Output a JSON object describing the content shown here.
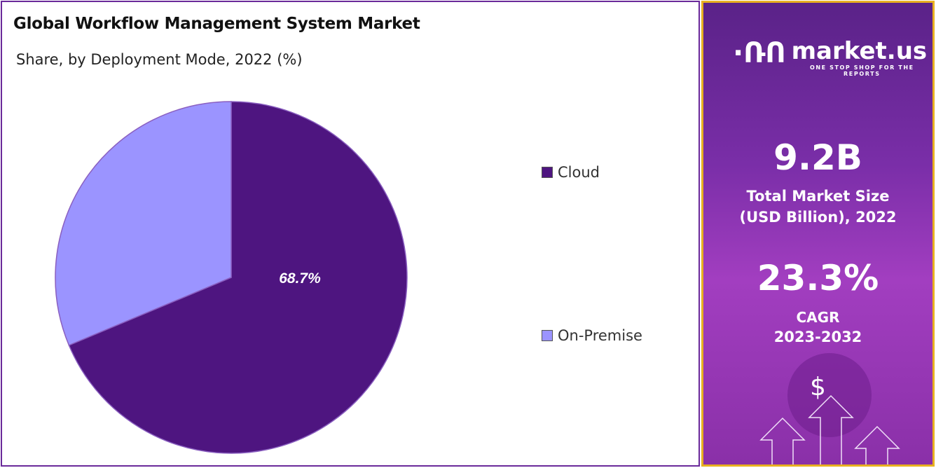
{
  "chart_data": {
    "type": "pie",
    "title": "Global Workflow Management System Market",
    "subtitle": "Share, by Deployment Mode, 2022 (%)",
    "categories": [
      "Cloud",
      "On-Premise"
    ],
    "values": [
      68.7,
      31.3
    ],
    "colors": [
      "#4e1580",
      "#9b94ff"
    ],
    "data_labels": [
      "68.7%",
      ""
    ],
    "legend_position": "right"
  },
  "sidebar": {
    "brand": "market.us",
    "tagline": "ONE STOP SHOP FOR THE REPORTS",
    "market_size": "9.2B",
    "market_size_label_1": "Total Market Size",
    "market_size_label_2": "(USD Billion), 2022",
    "cagr": "23.3%",
    "cagr_label": "CAGR",
    "cagr_period": "2023-2032",
    "dollar": "$"
  }
}
